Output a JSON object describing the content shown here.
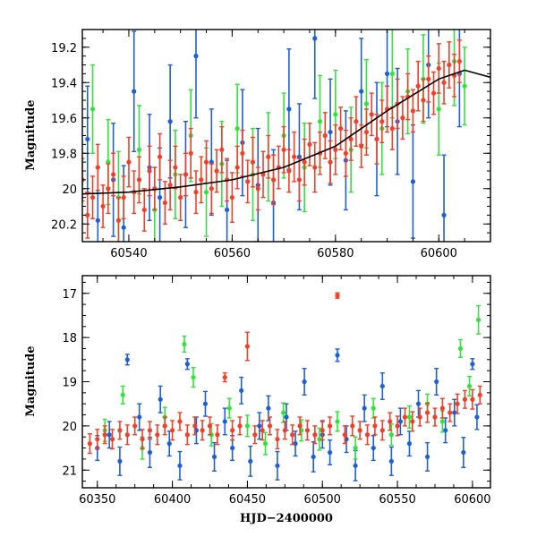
{
  "chart_data": [
    {
      "type": "scatter",
      "panel": "top",
      "title": "",
      "xlabel": "",
      "ylabel": "Magnitude",
      "xlim": [
        60531,
        60610
      ],
      "ylim": [
        20.3,
        19.1
      ],
      "y_inverted": true,
      "xticks": [
        60540,
        60560,
        60580,
        60600
      ],
      "yticks": [
        19.2,
        19.4,
        19.6,
        19.8,
        20,
        20.2
      ],
      "ytick_labels": [
        "19.2",
        "19.4",
        "19.6",
        "19.8",
        "20",
        "20.2"
      ],
      "series": [
        {
          "color": "#1f5fd6",
          "marker": "circle with error bars",
          "x": [
            60532,
            60534,
            60537,
            60539,
            60541,
            60544,
            60546,
            60548,
            60551,
            60553,
            60556,
            60559,
            60562,
            60565,
            60568,
            60571,
            60573,
            60576,
            60579,
            60582,
            60585,
            60588,
            60590,
            60592,
            60595,
            60598,
            60601,
            60604
          ],
          "y": [
            19.72,
            20.18,
            19.95,
            20.22,
            19.45,
            19.88,
            20.05,
            19.62,
            19.92,
            19.25,
            19.85,
            20.12,
            19.74,
            19.98,
            20.08,
            19.55,
            19.82,
            19.15,
            19.68,
            19.84,
            19.45,
            19.72,
            19.35,
            19.62,
            19.96,
            19.3,
            20.15,
            19.35
          ],
          "err": [
            0.3,
            0.3,
            0.32,
            0.35,
            0.34,
            0.3,
            0.28,
            0.32,
            0.3,
            0.35,
            0.3,
            0.28,
            0.3,
            0.32,
            0.3,
            0.34,
            0.3,
            0.34,
            0.3,
            0.28,
            0.3,
            0.32,
            0.3,
            0.3,
            0.32,
            0.3,
            0.34,
            0.3
          ]
        },
        {
          "color": "#33e23a",
          "marker": "circle with error bars",
          "x": [
            60533,
            60536,
            60538,
            60542,
            60545,
            60549,
            60552,
            60555,
            60558,
            60561,
            60564,
            60567,
            60570,
            60574,
            60577,
            60580,
            60583,
            60586,
            60589,
            60591,
            60594,
            60597,
            60600,
            60603,
            60605
          ],
          "y": [
            19.55,
            19.85,
            20.05,
            19.78,
            20.12,
            19.92,
            19.7,
            20.02,
            19.86,
            19.66,
            19.92,
            19.82,
            19.7,
            19.88,
            19.62,
            19.58,
            19.78,
            19.52,
            19.66,
            19.35,
            19.45,
            19.38,
            19.55,
            19.28,
            19.42
          ],
          "err": [
            0.25,
            0.24,
            0.26,
            0.25,
            0.24,
            0.25,
            0.26,
            0.25,
            0.24,
            0.25,
            0.26,
            0.25,
            0.24,
            0.25,
            0.26,
            0.25,
            0.24,
            0.25,
            0.26,
            0.25,
            0.24,
            0.25,
            0.26,
            0.25,
            0.22
          ]
        },
        {
          "color": "#f0402a",
          "marker": "circle with error bars",
          "x": [
            60531,
            60532,
            60533,
            60534,
            60535,
            60536,
            60537,
            60538,
            60539,
            60540,
            60541,
            60542,
            60543,
            60544,
            60545,
            60546,
            60547,
            60548,
            60549,
            60550,
            60551,
            60552,
            60553,
            60554,
            60555,
            60556,
            60557,
            60558,
            60559,
            60560,
            60561,
            60562,
            60563,
            60564,
            60565,
            60566,
            60567,
            60568,
            60569,
            60570,
            60571,
            60572,
            60573,
            60574,
            60575,
            60576,
            60577,
            60578,
            60579,
            60580,
            60581,
            60582,
            60583,
            60584,
            60585,
            60586,
            60587,
            60588,
            60589,
            60590,
            60591,
            60592,
            60593,
            60594,
            60595,
            60596,
            60597,
            60598,
            60599,
            60600,
            60601,
            60602,
            60603,
            60604
          ],
          "y": [
            19.95,
            20.15,
            20.05,
            19.88,
            20.1,
            20.0,
            19.92,
            20.18,
            20.05,
            19.85,
            20.02,
            19.95,
            20.12,
            19.9,
            20.0,
            19.82,
            20.08,
            19.98,
            19.88,
            20.05,
            19.92,
            19.8,
            20.02,
            19.95,
            19.85,
            20.0,
            19.9,
            19.78,
            19.95,
            20.05,
            19.88,
            19.8,
            19.96,
            19.85,
            20.0,
            19.92,
            19.82,
            19.95,
            19.88,
            19.78,
            19.9,
            19.82,
            19.95,
            19.85,
            19.75,
            19.88,
            19.8,
            19.7,
            19.85,
            19.78,
            19.66,
            19.8,
            19.72,
            19.62,
            19.76,
            19.68,
            19.58,
            19.72,
            19.62,
            19.55,
            19.66,
            19.52,
            19.6,
            19.48,
            19.56,
            19.42,
            19.5,
            19.38,
            19.46,
            19.32,
            19.4,
            19.3,
            19.36,
            19.28
          ],
          "err": [
            0.12,
            0.13,
            0.12,
            0.13,
            0.12,
            0.14,
            0.12,
            0.13,
            0.12,
            0.14,
            0.12,
            0.13,
            0.12,
            0.14,
            0.12,
            0.13,
            0.12,
            0.14,
            0.12,
            0.13,
            0.12,
            0.14,
            0.12,
            0.13,
            0.12,
            0.14,
            0.12,
            0.13,
            0.12,
            0.14,
            0.12,
            0.13,
            0.12,
            0.14,
            0.12,
            0.13,
            0.12,
            0.14,
            0.12,
            0.13,
            0.12,
            0.14,
            0.12,
            0.13,
            0.12,
            0.14,
            0.12,
            0.13,
            0.12,
            0.14,
            0.12,
            0.13,
            0.12,
            0.14,
            0.12,
            0.13,
            0.12,
            0.14,
            0.12,
            0.13,
            0.12,
            0.14,
            0.12,
            0.13,
            0.12,
            0.14,
            0.12,
            0.13,
            0.12,
            0.14,
            0.12,
            0.13,
            0.12,
            0.12
          ]
        }
      ],
      "model_curve": {
        "color": "#000000",
        "x": [
          60531,
          60540,
          60550,
          60560,
          60570,
          60580,
          60590,
          60600,
          60605,
          60610
        ],
        "y": [
          20.03,
          20.02,
          19.99,
          19.95,
          19.88,
          19.76,
          19.56,
          19.38,
          19.33,
          19.37
        ]
      }
    },
    {
      "type": "scatter",
      "panel": "bottom",
      "title": "",
      "xlabel": "HJD−2400000",
      "ylabel": "Magnitude",
      "xlim": [
        60340,
        60612
      ],
      "ylim": [
        21.4,
        16.6
      ],
      "y_inverted": true,
      "xticks": [
        60350,
        60400,
        60450,
        60500,
        60550,
        60600
      ],
      "yticks": [
        17,
        18,
        19,
        20,
        21
      ],
      "ytick_labels": [
        "17",
        "18",
        "19",
        "20",
        "21"
      ],
      "series": [
        {
          "color": "#1f5fd6",
          "marker": "circle with error bars",
          "x": [
            60350,
            60358,
            60365,
            60370,
            60378,
            60385,
            60392,
            60398,
            60405,
            60410,
            60416,
            60422,
            60428,
            60435,
            60440,
            60446,
            60452,
            60458,
            60464,
            60470,
            60476,
            60482,
            60488,
            60494,
            60500,
            60505,
            60510,
            60516,
            60522,
            60528,
            60534,
            60540,
            60546,
            60552,
            60558,
            60564,
            60570,
            60576,
            60582,
            60588,
            60594,
            60600,
            60603
          ],
          "y": [
            20.5,
            20.2,
            20.8,
            18.5,
            19.8,
            20.6,
            19.4,
            20.4,
            20.9,
            18.6,
            20.1,
            19.5,
            20.7,
            19.9,
            20.5,
            19.2,
            20.8,
            20.0,
            19.6,
            20.9,
            19.8,
            20.4,
            19.0,
            20.7,
            20.2,
            20.6,
            18.4,
            20.3,
            20.9,
            19.6,
            20.5,
            19.1,
            20.8,
            19.9,
            20.4,
            19.5,
            20.7,
            19.0,
            20.1,
            19.7,
            20.6,
            18.6,
            19.8
          ],
          "err": [
            0.28,
            0.3,
            0.32,
            0.12,
            0.3,
            0.34,
            0.3,
            0.28,
            0.32,
            0.12,
            0.3,
            0.28,
            0.32,
            0.3,
            0.28,
            0.3,
            0.34,
            0.3,
            0.28,
            0.32,
            0.3,
            0.28,
            0.3,
            0.34,
            0.3,
            0.28,
            0.14,
            0.3,
            0.34,
            0.3,
            0.28,
            0.3,
            0.32,
            0.3,
            0.28,
            0.3,
            0.32,
            0.3,
            0.28,
            0.3,
            0.34,
            0.12,
            0.28
          ]
        },
        {
          "color": "#33e23a",
          "marker": "circle with error bars",
          "x": [
            60355,
            60367,
            60380,
            60395,
            60408,
            60414,
            60426,
            60438,
            60450,
            60462,
            60474,
            60486,
            60498,
            60510,
            60522,
            60534,
            60546,
            60558,
            60570,
            60580,
            60592,
            60598,
            60604
          ],
          "y": [
            20.1,
            19.3,
            20.5,
            19.8,
            18.15,
            18.9,
            20.2,
            19.6,
            20.0,
            20.4,
            19.7,
            20.1,
            20.3,
            19.9,
            20.5,
            19.6,
            20.2,
            19.8,
            19.5,
            19.9,
            18.25,
            19.1,
            17.6
          ],
          "err": [
            0.25,
            0.2,
            0.25,
            0.22,
            0.18,
            0.22,
            0.25,
            0.22,
            0.24,
            0.25,
            0.22,
            0.24,
            0.25,
            0.22,
            0.25,
            0.22,
            0.24,
            0.25,
            0.22,
            0.24,
            0.2,
            0.22,
            0.32
          ]
        },
        {
          "color": "#f0402a",
          "marker": "circle with error bars",
          "x": [
            60345,
            60350,
            60355,
            60360,
            60365,
            60370,
            60375,
            60380,
            60385,
            60390,
            60395,
            60400,
            60405,
            60410,
            60415,
            60420,
            60425,
            60430,
            60435,
            60440,
            60445,
            60450,
            60455,
            60460,
            60465,
            60470,
            60475,
            60480,
            60485,
            60490,
            60495,
            60500,
            60505,
            60510,
            60515,
            60520,
            60525,
            60530,
            60535,
            60540,
            60545,
            60550,
            60555,
            60560,
            60565,
            60570,
            60575,
            60580,
            60585,
            60590,
            60595,
            60600,
            60605
          ],
          "y": [
            20.4,
            20.3,
            20.2,
            20.3,
            20.1,
            20.2,
            20.0,
            20.3,
            20.1,
            20.2,
            20.0,
            20.1,
            19.9,
            20.2,
            20.0,
            20.1,
            20.0,
            20.2,
            18.9,
            20.1,
            20.0,
            18.2,
            20.2,
            20.1,
            20.0,
            20.3,
            20.1,
            20.2,
            20.0,
            20.1,
            20.2,
            20.1,
            20.0,
            17.05,
            20.2,
            20.0,
            20.1,
            20.2,
            20.0,
            20.1,
            19.9,
            20.0,
            19.8,
            19.9,
            19.8,
            19.7,
            19.8,
            19.6,
            19.7,
            19.5,
            19.4,
            19.4,
            19.3
          ],
          "err": [
            0.22,
            0.22,
            0.2,
            0.22,
            0.2,
            0.22,
            0.2,
            0.22,
            0.2,
            0.22,
            0.2,
            0.22,
            0.2,
            0.22,
            0.2,
            0.22,
            0.2,
            0.22,
            0.1,
            0.22,
            0.2,
            0.32,
            0.2,
            0.22,
            0.2,
            0.22,
            0.2,
            0.22,
            0.2,
            0.22,
            0.2,
            0.22,
            0.2,
            0.06,
            0.2,
            0.22,
            0.2,
            0.22,
            0.2,
            0.22,
            0.2,
            0.22,
            0.2,
            0.22,
            0.2,
            0.22,
            0.2,
            0.22,
            0.2,
            0.22,
            0.2,
            0.22,
            0.2
          ]
        }
      ]
    }
  ]
}
